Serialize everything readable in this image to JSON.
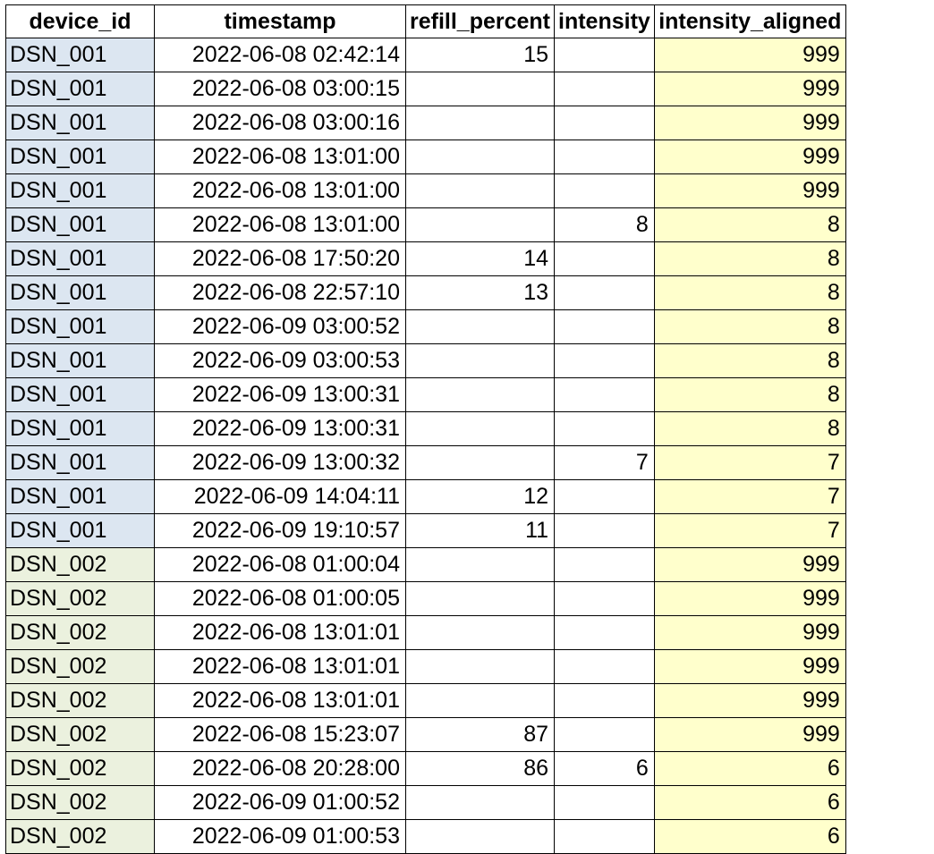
{
  "columns": {
    "device_id": "device_id",
    "timestamp": "timestamp",
    "refill_percent": "refill_percent",
    "intensity": "intensity",
    "intensity_aligned": "intensity_aligned"
  },
  "colors": {
    "group_DSN_001_fill": "#dce6f1",
    "group_DSN_002_fill": "#ebf1de",
    "intensity_aligned_fill": "#ffffcc",
    "grid": "#000000"
  },
  "rows": [
    {
      "device_id": "DSN_001",
      "timestamp": "2022-06-08 02:42:14",
      "refill_percent": "15",
      "intensity": "",
      "intensity_aligned": "999"
    },
    {
      "device_id": "DSN_001",
      "timestamp": "2022-06-08 03:00:15",
      "refill_percent": "",
      "intensity": "",
      "intensity_aligned": "999"
    },
    {
      "device_id": "DSN_001",
      "timestamp": "2022-06-08 03:00:16",
      "refill_percent": "",
      "intensity": "",
      "intensity_aligned": "999"
    },
    {
      "device_id": "DSN_001",
      "timestamp": "2022-06-08 13:01:00",
      "refill_percent": "",
      "intensity": "",
      "intensity_aligned": "999"
    },
    {
      "device_id": "DSN_001",
      "timestamp": "2022-06-08 13:01:00",
      "refill_percent": "",
      "intensity": "",
      "intensity_aligned": "999"
    },
    {
      "device_id": "DSN_001",
      "timestamp": "2022-06-08 13:01:00",
      "refill_percent": "",
      "intensity": "8",
      "intensity_aligned": "8"
    },
    {
      "device_id": "DSN_001",
      "timestamp": "2022-06-08 17:50:20",
      "refill_percent": "14",
      "intensity": "",
      "intensity_aligned": "8"
    },
    {
      "device_id": "DSN_001",
      "timestamp": "2022-06-08 22:57:10",
      "refill_percent": "13",
      "intensity": "",
      "intensity_aligned": "8"
    },
    {
      "device_id": "DSN_001",
      "timestamp": "2022-06-09 03:00:52",
      "refill_percent": "",
      "intensity": "",
      "intensity_aligned": "8"
    },
    {
      "device_id": "DSN_001",
      "timestamp": "2022-06-09 03:00:53",
      "refill_percent": "",
      "intensity": "",
      "intensity_aligned": "8"
    },
    {
      "device_id": "DSN_001",
      "timestamp": "2022-06-09 13:00:31",
      "refill_percent": "",
      "intensity": "",
      "intensity_aligned": "8"
    },
    {
      "device_id": "DSN_001",
      "timestamp": "2022-06-09 13:00:31",
      "refill_percent": "",
      "intensity": "",
      "intensity_aligned": "8"
    },
    {
      "device_id": "DSN_001",
      "timestamp": "2022-06-09 13:00:32",
      "refill_percent": "",
      "intensity": "7",
      "intensity_aligned": "7"
    },
    {
      "device_id": "DSN_001",
      "timestamp": "2022-06-09 14:04:11",
      "refill_percent": "12",
      "intensity": "",
      "intensity_aligned": "7"
    },
    {
      "device_id": "DSN_001",
      "timestamp": "2022-06-09 19:10:57",
      "refill_percent": "11",
      "intensity": "",
      "intensity_aligned": "7"
    },
    {
      "device_id": "DSN_002",
      "timestamp": "2022-06-08 01:00:04",
      "refill_percent": "",
      "intensity": "",
      "intensity_aligned": "999"
    },
    {
      "device_id": "DSN_002",
      "timestamp": "2022-06-08 01:00:05",
      "refill_percent": "",
      "intensity": "",
      "intensity_aligned": "999"
    },
    {
      "device_id": "DSN_002",
      "timestamp": "2022-06-08 13:01:01",
      "refill_percent": "",
      "intensity": "",
      "intensity_aligned": "999"
    },
    {
      "device_id": "DSN_002",
      "timestamp": "2022-06-08 13:01:01",
      "refill_percent": "",
      "intensity": "",
      "intensity_aligned": "999"
    },
    {
      "device_id": "DSN_002",
      "timestamp": "2022-06-08 13:01:01",
      "refill_percent": "",
      "intensity": "",
      "intensity_aligned": "999"
    },
    {
      "device_id": "DSN_002",
      "timestamp": "2022-06-08 15:23:07",
      "refill_percent": "87",
      "intensity": "",
      "intensity_aligned": "999"
    },
    {
      "device_id": "DSN_002",
      "timestamp": "2022-06-08 20:28:00",
      "refill_percent": "86",
      "intensity": "6",
      "intensity_aligned": "6"
    },
    {
      "device_id": "DSN_002",
      "timestamp": "2022-06-09 01:00:52",
      "refill_percent": "",
      "intensity": "",
      "intensity_aligned": "6"
    },
    {
      "device_id": "DSN_002",
      "timestamp": "2022-06-09 01:00:53",
      "refill_percent": "",
      "intensity": "",
      "intensity_aligned": "6"
    }
  ]
}
